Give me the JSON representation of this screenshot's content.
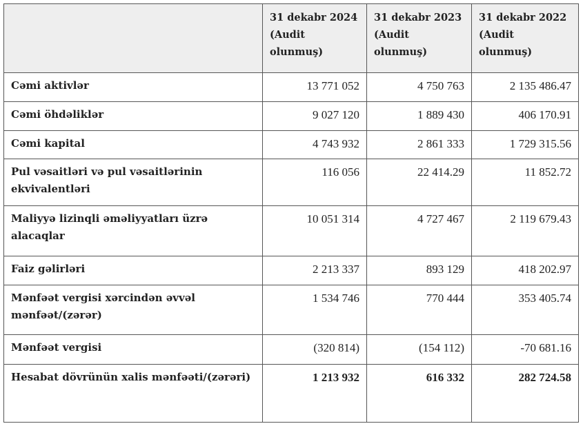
{
  "header": {
    "blank": "",
    "columns": [
      {
        "line1": "31 dekabr 2024",
        "line2": "(Audit",
        "line3": "olunmuş)"
      },
      {
        "line1": "31 dekabr 2023",
        "line2": "(Audit",
        "line3": "olunmuş)"
      },
      {
        "line1": "31 dekabr 2022",
        "line2": "(Audit",
        "line3": "olunmuş)"
      }
    ]
  },
  "rows": [
    {
      "label": "Cəmi aktivlər",
      "values": [
        "13 771 052",
        "4 750 763",
        "2 135 486.47"
      ]
    },
    {
      "label": "Cəmi öhdəliklər",
      "values": [
        "9 027 120",
        "1 889 430",
        "406 170.91"
      ]
    },
    {
      "label": "Cəmi kapital",
      "values": [
        "4 743 932",
        "2 861 333",
        "1 729 315.56"
      ]
    },
    {
      "label": "Pul vəsaitləri və pul vəsaitlərinin ekvivalentləri",
      "values": [
        "116 056",
        "22 414.29",
        "11 852.72"
      ]
    },
    {
      "label": "Maliyyə lizinqli əməliyyatları üzrə alacaqlar",
      "values": [
        "10 051 314",
        "4 727 467",
        "2 119 679.43"
      ]
    },
    {
      "label": "Faiz gəlirləri",
      "values": [
        "2 213 337",
        "893 129",
        "418 202.97"
      ]
    },
    {
      "label": "Mənfəət vergisi xərcindən əvvəl mənfəət/(zərər)",
      "values": [
        "1 534 746",
        "770 444",
        "353 405.74"
      ]
    },
    {
      "label": "Mənfəət vergisi",
      "values": [
        "(320 814)",
        "(154 112)",
        "-70 681.16"
      ]
    },
    {
      "label": "Hesabat dövrünün xalis mənfəəti/(zərəri)",
      "values": [
        "1 213 932",
        "616 332",
        "282 724.58"
      ]
    }
  ]
}
